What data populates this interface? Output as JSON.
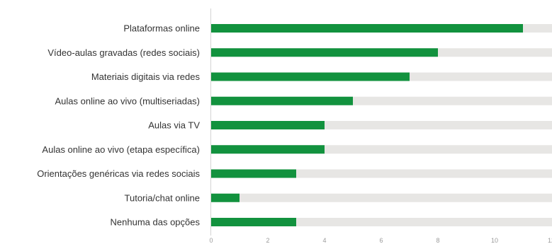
{
  "chart_data": {
    "type": "bar",
    "orientation": "horizontal",
    "categories": [
      "Plataformas online",
      "Vídeo-aulas gravadas (redes sociais)",
      "Materiais digitais via redes",
      "Aulas online ao vivo (multiseriadas)",
      "Aulas via TV",
      "Aulas online ao vivo (etapa específica)",
      "Orientações genéricas via redes sociais",
      "Tutoria/chat online",
      "Nenhuma das opções"
    ],
    "values": [
      11,
      8,
      7,
      5,
      4,
      4,
      3,
      1,
      3
    ],
    "xlim": [
      0,
      12
    ],
    "x_ticks": [
      "0",
      "2",
      "4",
      "6",
      "8",
      "10",
      "12"
    ],
    "background_track_max": 12,
    "colors": {
      "bar": "#12923e",
      "track": "#e7e6e4",
      "axis": "#d4d4d4"
    },
    "grid": false,
    "legend": "none"
  }
}
